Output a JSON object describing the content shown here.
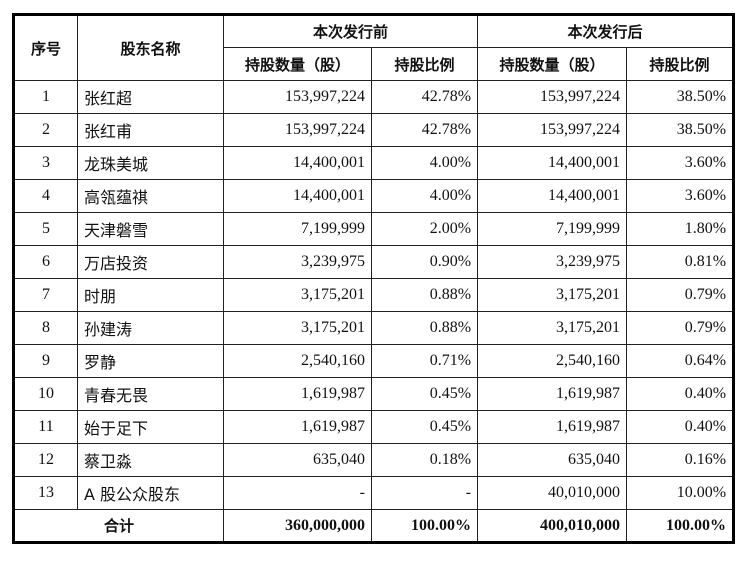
{
  "table": {
    "headers": {
      "index": "序号",
      "name": "股东名称",
      "before_group": "本次发行前",
      "after_group": "本次发行后",
      "before_shares": "持股数量（股）",
      "before_ratio": "持股比例",
      "after_shares": "持股数量（股）",
      "after_ratio": "持股比例"
    },
    "rows": [
      {
        "index": "1",
        "name": "张红超",
        "before_shares": "153,997,224",
        "before_ratio": "42.78%",
        "after_shares": "153,997,224",
        "after_ratio": "38.50%"
      },
      {
        "index": "2",
        "name": "张红甫",
        "before_shares": "153,997,224",
        "before_ratio": "42.78%",
        "after_shares": "153,997,224",
        "after_ratio": "38.50%"
      },
      {
        "index": "3",
        "name": "龙珠美城",
        "before_shares": "14,400,001",
        "before_ratio": "4.00%",
        "after_shares": "14,400,001",
        "after_ratio": "3.60%"
      },
      {
        "index": "4",
        "name": "高瓴蕴祺",
        "before_shares": "14,400,001",
        "before_ratio": "4.00%",
        "after_shares": "14,400,001",
        "after_ratio": "3.60%"
      },
      {
        "index": "5",
        "name": "天津磐雪",
        "before_shares": "7,199,999",
        "before_ratio": "2.00%",
        "after_shares": "7,199,999",
        "after_ratio": "1.80%"
      },
      {
        "index": "6",
        "name": "万店投资",
        "before_shares": "3,239,975",
        "before_ratio": "0.90%",
        "after_shares": "3,239,975",
        "after_ratio": "0.81%"
      },
      {
        "index": "7",
        "name": "时朋",
        "before_shares": "3,175,201",
        "before_ratio": "0.88%",
        "after_shares": "3,175,201",
        "after_ratio": "0.79%"
      },
      {
        "index": "8",
        "name": "孙建涛",
        "before_shares": "3,175,201",
        "before_ratio": "0.88%",
        "after_shares": "3,175,201",
        "after_ratio": "0.79%"
      },
      {
        "index": "9",
        "name": "罗静",
        "before_shares": "2,540,160",
        "before_ratio": "0.71%",
        "after_shares": "2,540,160",
        "after_ratio": "0.64%"
      },
      {
        "index": "10",
        "name": "青春无畏",
        "before_shares": "1,619,987",
        "before_ratio": "0.45%",
        "after_shares": "1,619,987",
        "after_ratio": "0.40%"
      },
      {
        "index": "11",
        "name": "始于足下",
        "before_shares": "1,619,987",
        "before_ratio": "0.45%",
        "after_shares": "1,619,987",
        "after_ratio": "0.40%"
      },
      {
        "index": "12",
        "name": "蔡卫淼",
        "before_shares": "635,040",
        "before_ratio": "0.18%",
        "after_shares": "635,040",
        "after_ratio": "0.16%"
      },
      {
        "index": "13",
        "name": "A 股公众股东",
        "before_shares": "-",
        "before_ratio": "-",
        "after_shares": "40,010,000",
        "after_ratio": "10.00%"
      }
    ],
    "total": {
      "label": "合计",
      "before_shares": "360,000,000",
      "before_ratio": "100.00%",
      "after_shares": "400,010,000",
      "after_ratio": "100.00%"
    }
  }
}
